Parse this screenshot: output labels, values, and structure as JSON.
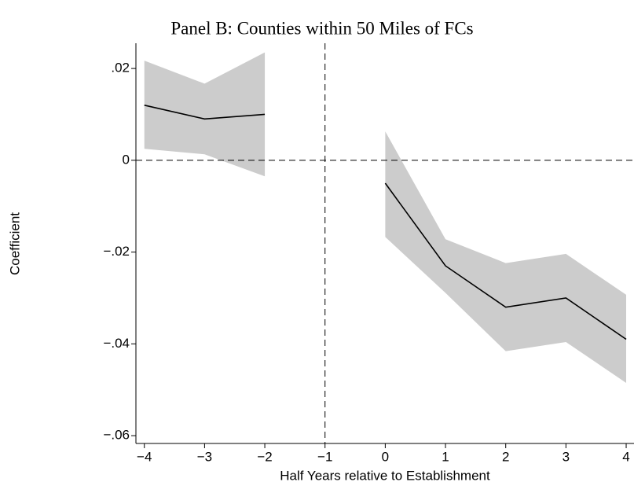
{
  "chart_data": {
    "type": "line",
    "title": "Panel B: Counties within 50 Miles of FCs",
    "x_label": "Half Years relative to Establishment",
    "y_label": "Coefficient",
    "x": [
      -4,
      -3,
      -2,
      -1,
      0,
      1,
      2,
      3,
      4
    ],
    "series": [
      {
        "color": "#000000",
        "values": [
          0.012,
          0.009,
          0.01,
          null,
          -0.005,
          -0.023,
          -0.032,
          -0.03,
          -0.039
        ],
        "ci_upper": [
          0.0217,
          0.0167,
          0.0235,
          null,
          0.0063,
          -0.0172,
          -0.0224,
          -0.0204,
          -0.0293
        ],
        "ci_lower": [
          0.0025,
          0.0013,
          -0.0035,
          null,
          -0.0167,
          -0.0289,
          -0.0416,
          -0.0396,
          -0.0485
        ],
        "ci_color": "#cccccc"
      }
    ],
    "xlim": [
      -4.14,
      4.13
    ],
    "ylim": [
      -0.0617,
      0.0255
    ],
    "xticks": [
      {
        "value": -4,
        "label": "−4"
      },
      {
        "value": -3,
        "label": "−3"
      },
      {
        "value": -2,
        "label": "−2"
      },
      {
        "value": -1,
        "label": "−1"
      },
      0,
      1,
      2,
      3,
      4
    ],
    "yticks": [
      {
        "value": 0.02,
        "label": ".02"
      },
      0,
      {
        "value": -0.02,
        "label": "−.02"
      },
      {
        "value": -0.04,
        "label": "−.04"
      },
      {
        "value": -0.06,
        "label": "−.06"
      }
    ],
    "reference_lines": {
      "x": -1,
      "y": 0
    }
  }
}
